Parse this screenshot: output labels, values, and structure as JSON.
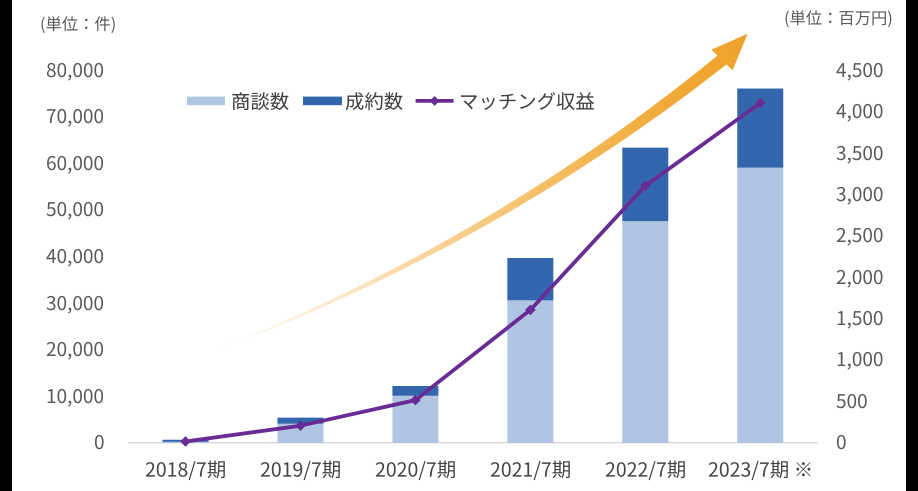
{
  "app": {
    "kind": "presentation-slide-kpi-chart",
    "background_color": "#000000",
    "panel_color": "#ffffff"
  },
  "chart_data": {
    "type": "combo",
    "subtype": "stacked-bar + line",
    "title": "",
    "categories": [
      "2018/7期",
      "2019/7期",
      "2020/7期",
      "2021/7期",
      "2022/7期",
      "2023/7期 ※"
    ],
    "series": [
      {
        "name": "商談数",
        "type": "bar",
        "stack": "cases",
        "axis": "left",
        "color": "#b0c5e3",
        "values": [
          100,
          4000,
          10000,
          30500,
          47500,
          59000
        ]
      },
      {
        "name": "成約数",
        "type": "bar",
        "stack": "cases",
        "axis": "left",
        "color": "#3466ad",
        "values": [
          450,
          1300,
          2100,
          9100,
          15800,
          17000
        ]
      },
      {
        "name": "マッチング収益",
        "type": "line",
        "axis": "right",
        "marker": "diamond",
        "color": "#682c94",
        "values": [
          10,
          200,
          510,
          1600,
          3100,
          4100
        ]
      }
    ],
    "left_axis": {
      "unit_label": "(単位：件)",
      "min": 0,
      "max": 80000,
      "tick_step": 10000,
      "tick_labels": [
        "0",
        "10,000",
        "20,000",
        "30,000",
        "40,000",
        "50,000",
        "60,000",
        "70,000",
        "80,000"
      ]
    },
    "right_axis": {
      "unit_label": "(単位：百万円)",
      "min": 0,
      "max": 4500,
      "tick_step": 500,
      "tick_labels": [
        "0",
        "500",
        "1,000",
        "1,500",
        "2,000",
        "2,500",
        "3,000",
        "3,500",
        "4,000",
        "4,500"
      ]
    },
    "legend": {
      "position": "top-center",
      "items": [
        "商談数",
        "成約数",
        "マッチング収益"
      ]
    },
    "annotations": [
      {
        "type": "growth-arrow",
        "shape": "tapered swoosh arrow up-right",
        "color": "#efa22a"
      }
    ],
    "grid": "off",
    "baseline_color": "#d9d9d9",
    "footnote_marker": "※"
  }
}
